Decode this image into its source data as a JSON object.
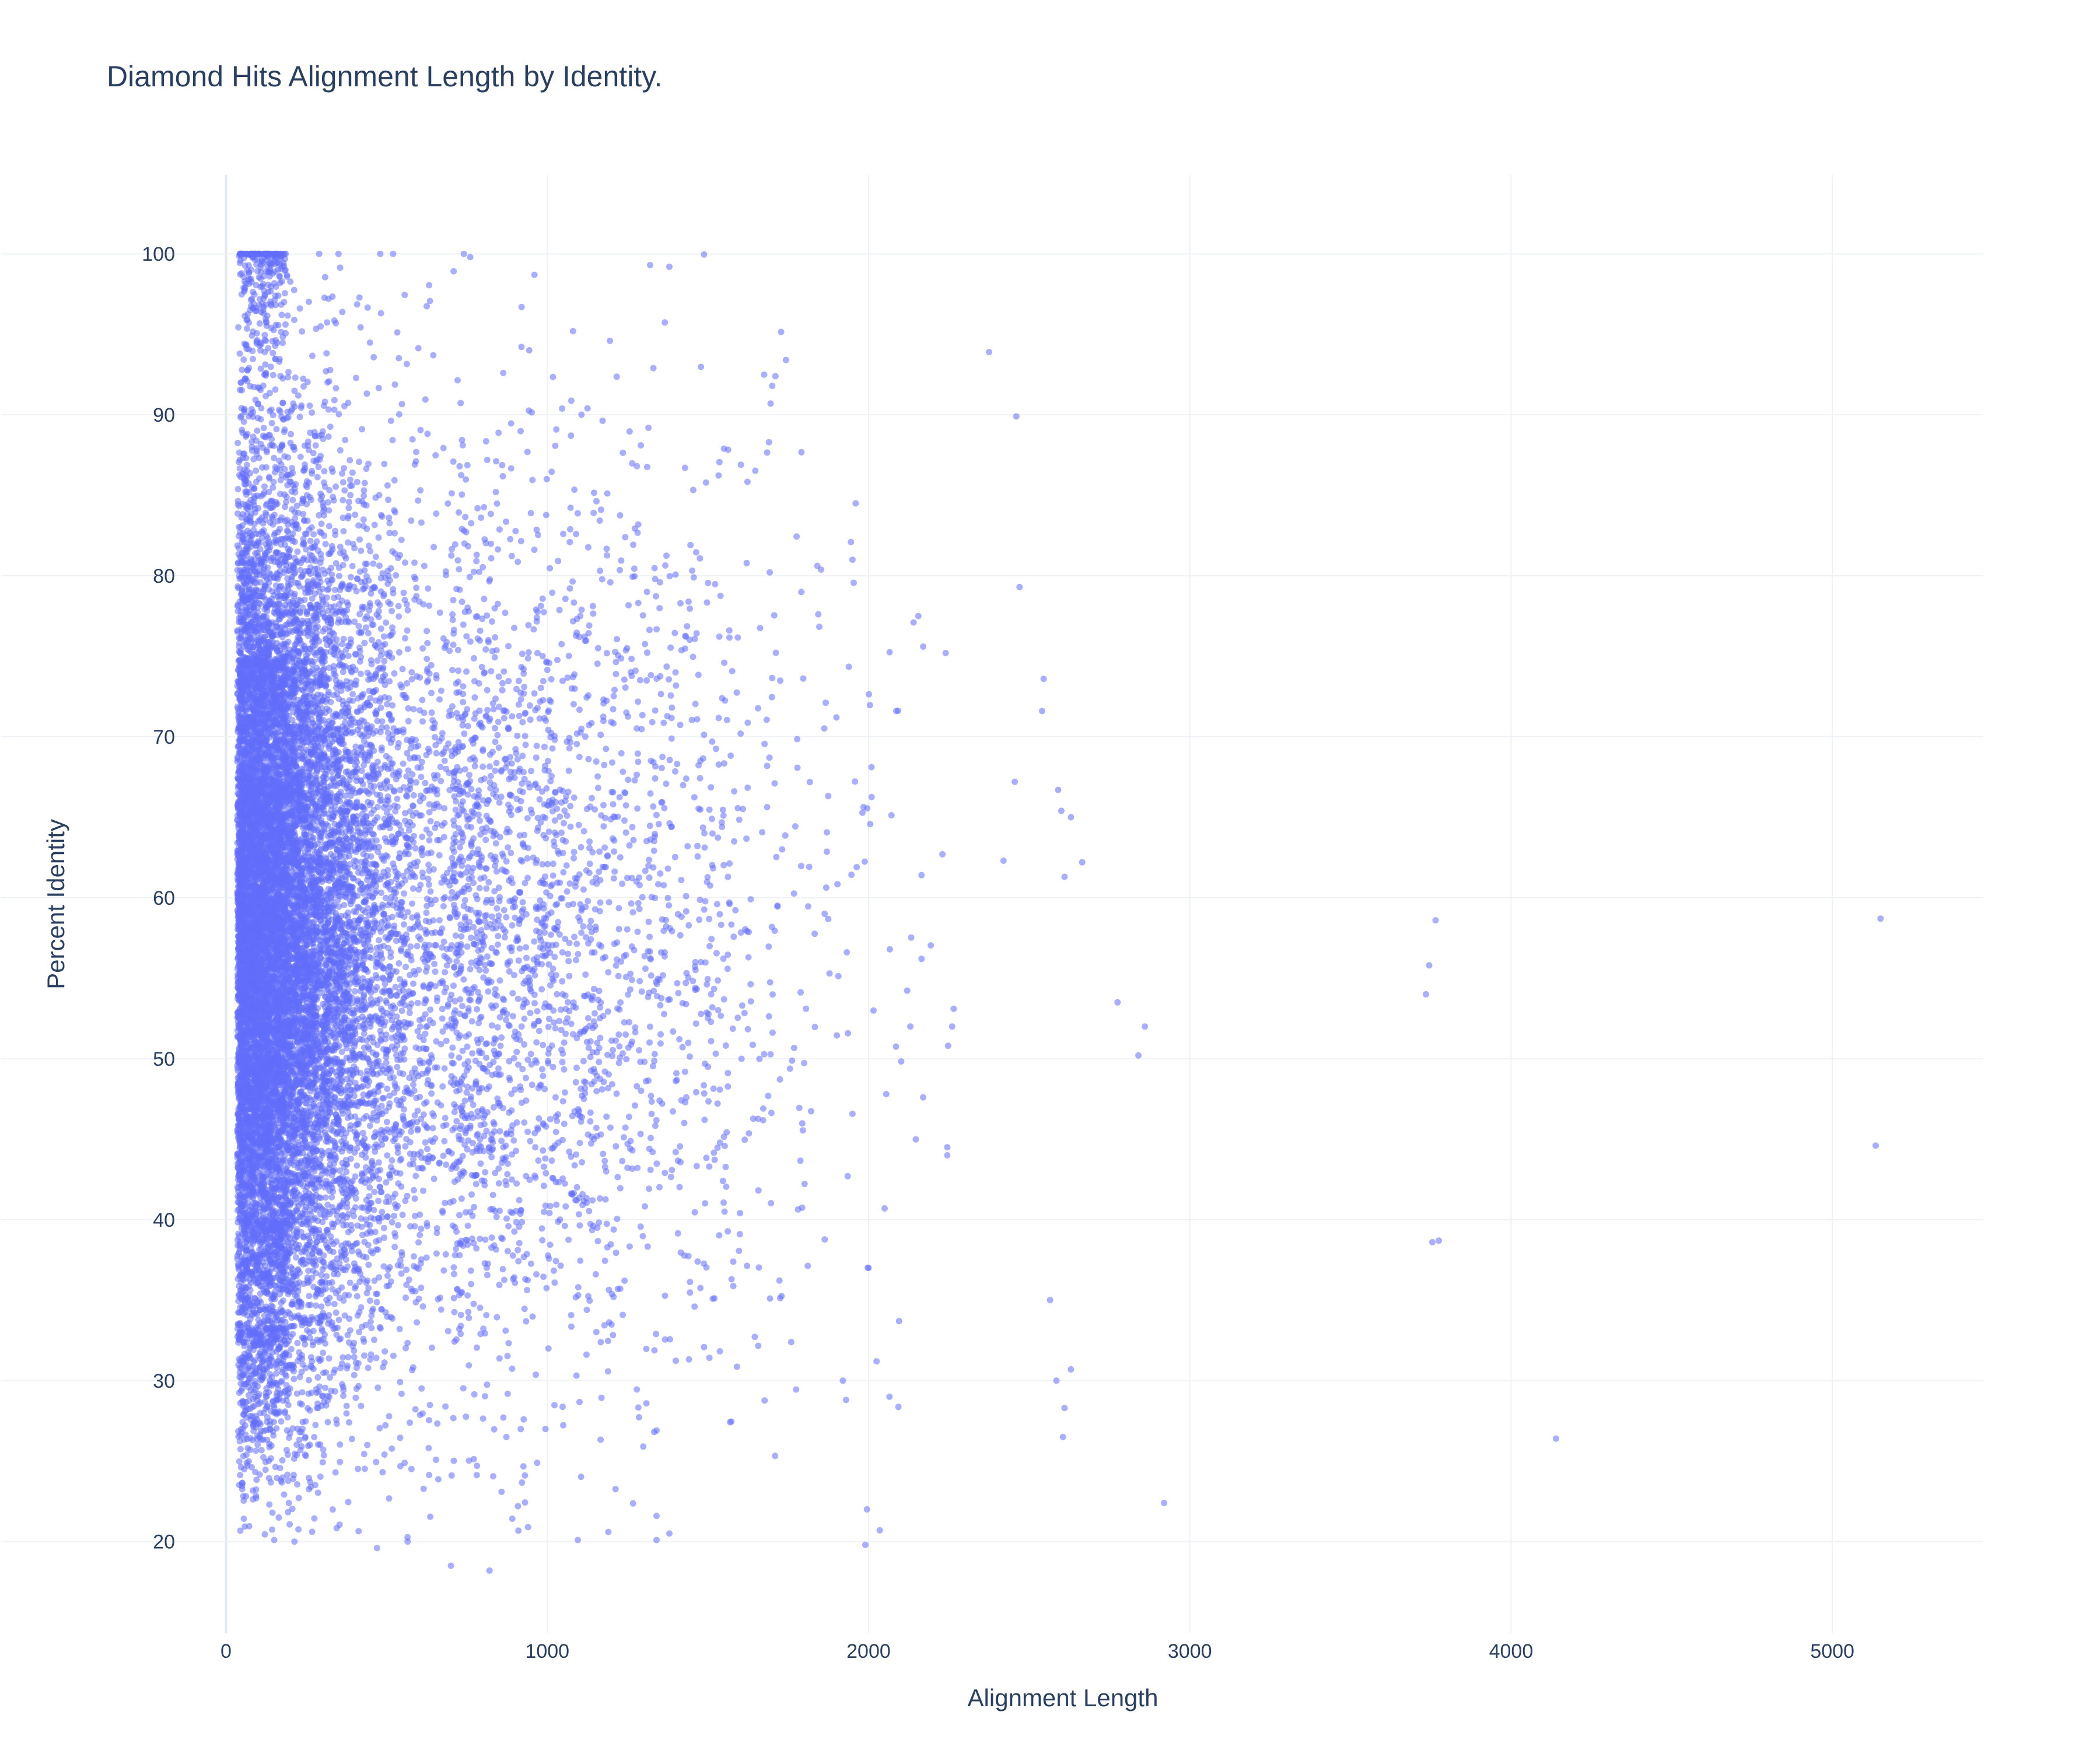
{
  "chart_data": {
    "type": "scatter",
    "title": "Diamond Hits Alignment Length by Identity.",
    "xlabel": "Alignment Length",
    "ylabel": "Percent Identity",
    "xlim": [
      -700,
      5470
    ],
    "ylim": [
      14.3,
      104.9
    ],
    "xticks": [
      0,
      1000,
      2000,
      3000,
      4000,
      5000
    ],
    "xtick_labels": [
      "0",
      "1000",
      "2000",
      "3000",
      "4000",
      "5000"
    ],
    "yticks": [
      20,
      30,
      40,
      50,
      60,
      70,
      80,
      90,
      100
    ],
    "ytick_labels": [
      "20",
      "30",
      "40",
      "50",
      "60",
      "70",
      "80",
      "90",
      "100"
    ],
    "grid": true,
    "legend": "none",
    "marker_color": "#636efa",
    "marker_opacity": 0.55,
    "series": [
      {
        "points": [
          [
            5150,
            58.7
          ],
          [
            5135,
            44.6
          ],
          [
            4140,
            26.4
          ],
          [
            3765,
            58.6
          ],
          [
            3745,
            55.8
          ],
          [
            3735,
            54.0
          ],
          [
            3755,
            38.6
          ],
          [
            3775,
            38.7
          ],
          [
            2920,
            22.4
          ],
          [
            2860,
            52.0
          ],
          [
            2840,
            50.2
          ],
          [
            2775,
            53.5
          ],
          [
            2665,
            62.2
          ],
          [
            2630,
            65.0
          ],
          [
            2610,
            61.3
          ],
          [
            2590,
            66.7
          ],
          [
            2600,
            65.4
          ],
          [
            2630,
            30.7
          ],
          [
            2610,
            28.3
          ],
          [
            2605,
            26.5
          ],
          [
            2585,
            30.0
          ],
          [
            2565,
            35.0
          ],
          [
            2545,
            73.6
          ],
          [
            2540,
            71.6
          ],
          [
            2470,
            79.3
          ],
          [
            2455,
            67.2
          ],
          [
            2460,
            89.9
          ],
          [
            2420,
            62.3
          ],
          [
            2375,
            93.9
          ],
          [
            2265,
            53.1
          ],
          [
            2260,
            52.0
          ],
          [
            2245,
            44.5
          ],
          [
            2245,
            44.0
          ],
          [
            2240,
            75.2
          ],
          [
            2230,
            62.7
          ],
          [
            2170,
            75.6
          ],
          [
            2155,
            77.5
          ],
          [
            2140,
            77.1
          ],
          [
            2130,
            52.0
          ],
          [
            2170,
            47.6
          ],
          [
            2165,
            56.2
          ],
          [
            2165,
            61.4
          ],
          [
            2095,
            33.7
          ],
          [
            2065,
            29.0
          ],
          [
            2055,
            47.8
          ],
          [
            2050,
            40.7
          ],
          [
            2035,
            20.7
          ],
          [
            2025,
            31.2
          ],
          [
            1995,
            22.0
          ],
          [
            1990,
            19.8
          ],
          [
            2000,
            37.0
          ],
          [
            1950,
            81.0
          ],
          [
            1960,
            84.5
          ],
          [
            1945,
            82.1
          ],
          [
            1935,
            42.7
          ],
          [
            1930,
            28.8
          ],
          [
            1920,
            30.0
          ],
          [
            1900,
            71.2
          ],
          [
            1710,
            92.4
          ],
          [
            1700,
            91.8
          ],
          [
            1695,
            90.7
          ],
          [
            1690,
            88.3
          ],
          [
            1675,
            92.5
          ],
          [
            1550,
            87.9
          ],
          [
            1380,
            99.2
          ],
          [
            1320,
            99.3
          ],
          [
            1330,
            92.9
          ],
          [
            1195,
            94.6
          ],
          [
            1080,
            95.2
          ],
          [
            1125,
            90.4
          ],
          [
            960,
            98.7
          ],
          [
            920,
            96.7
          ],
          [
            740,
            100.0
          ],
          [
            760,
            99.8
          ],
          [
            520,
            100.0
          ],
          [
            480,
            100.0
          ],
          [
            350,
            100.0
          ],
          [
            290,
            100.0
          ],
          [
            1380,
            20.5
          ],
          [
            1340,
            20.1
          ],
          [
            1340,
            21.6
          ],
          [
            1190,
            20.6
          ],
          [
            1095,
            20.1
          ],
          [
            940,
            20.9
          ],
          [
            820,
            18.2
          ],
          [
            700,
            18.5
          ],
          [
            470,
            19.6
          ],
          [
            150,
            20.1
          ],
          [
            565,
            20.0
          ]
        ]
      }
    ]
  }
}
